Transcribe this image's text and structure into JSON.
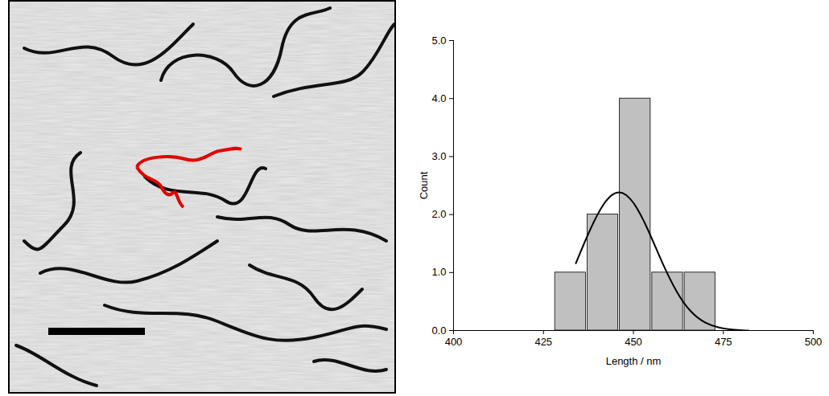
{
  "chart_data": {
    "type": "histogram",
    "xlabel": "Length / nm",
    "ylabel": "Count",
    "bins": [
      428,
      437,
      446,
      455,
      464,
      473
    ],
    "counts": [
      1,
      2,
      4,
      1,
      1
    ],
    "color": "#c0c0c0",
    "fit": {
      "type": "line",
      "color": "#000000",
      "x": [
        434,
        438,
        442,
        446,
        450,
        454,
        458,
        462,
        466,
        470,
        474,
        478,
        482
      ],
      "values": [
        1.16,
        1.76,
        2.25,
        2.45,
        2.25,
        1.76,
        1.16,
        0.65,
        0.3,
        0.12,
        0.04,
        0.01,
        0.0
      ]
    },
    "xlim": [
      400,
      500
    ],
    "xticks": [
      400,
      425,
      450,
      475,
      500
    ],
    "ylim": [
      0,
      5
    ],
    "yticks": [
      0,
      1,
      2,
      3,
      4,
      5
    ],
    "grid": false
  }
}
